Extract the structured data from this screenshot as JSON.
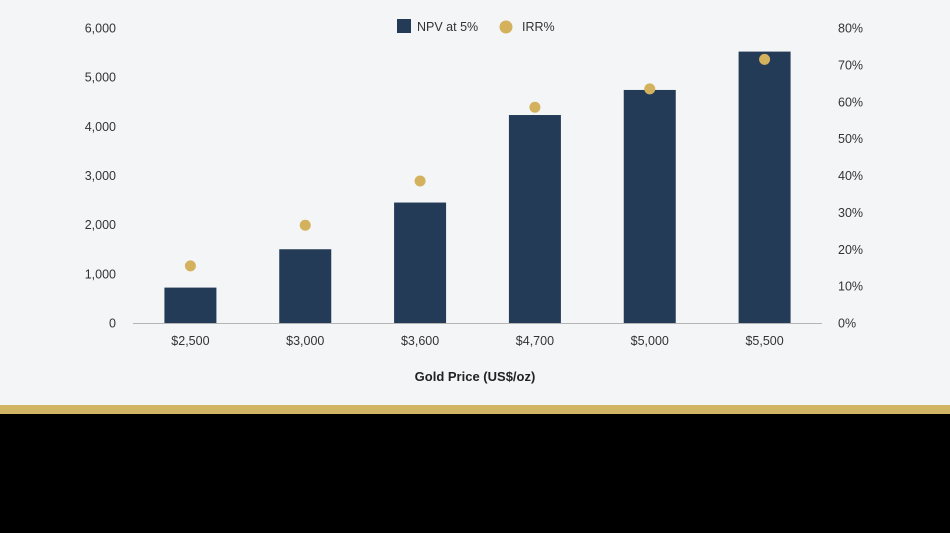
{
  "colors": {
    "bar": "#243b57",
    "dot": "#d4b15d",
    "stripe": "#d1b565",
    "background": "#f4f5f7",
    "axis": "#b5b5b5"
  },
  "chart_data": {
    "type": "bar",
    "title": "",
    "xlabel": "Gold Price (US$/oz)",
    "ylabel": "",
    "categories": [
      "$2,500",
      "$3,000",
      "$3,600",
      "$4,700",
      "$5,000",
      "$5,500"
    ],
    "series": [
      {
        "name": "NPV at 5%",
        "type": "bar",
        "axis": "left",
        "values": [
          720,
          1500,
          2450,
          4230,
          4740,
          5520
        ]
      },
      {
        "name": "IRR%",
        "type": "scatter",
        "axis": "right",
        "values": [
          15.5,
          26.5,
          38.5,
          58.5,
          63.5,
          71.5
        ]
      }
    ],
    "ylim": [
      0,
      6000
    ],
    "yticks": [
      "0",
      "1,000",
      "2,000",
      "3,000",
      "4,000",
      "5,000",
      "6,000"
    ],
    "y2lim": [
      0,
      80
    ],
    "y2ticks": [
      "0%",
      "10%",
      "20%",
      "30%",
      "40%",
      "50%",
      "60%",
      "70%",
      "80%"
    ],
    "legend": "top-center",
    "grid": false
  }
}
